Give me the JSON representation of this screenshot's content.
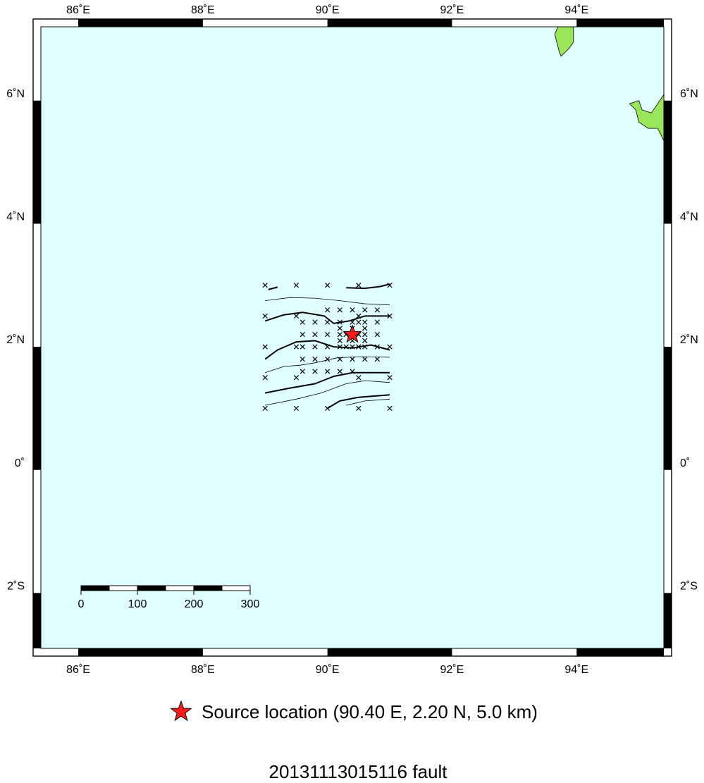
{
  "map": {
    "lon_range": [
      85.4,
      95.4
    ],
    "lat_range": [
      -2.9,
      7.2
    ],
    "colors": {
      "ocean": "#e0ffff",
      "land": "#9be55a",
      "frame": "#000000",
      "source": "#ff1a1a",
      "contour": "#000000"
    },
    "lon_ticks": [
      {
        "value": 86,
        "label": "86˚E"
      },
      {
        "value": 88,
        "label": "88˚E"
      },
      {
        "value": 90,
        "label": "90˚E"
      },
      {
        "value": 92,
        "label": "92˚E"
      },
      {
        "value": 94,
        "label": "94˚E"
      }
    ],
    "lat_ticks": [
      {
        "value": 6,
        "label": "6˚N"
      },
      {
        "value": 4,
        "label": "4˚N"
      },
      {
        "value": 2,
        "label": "2˚N"
      },
      {
        "value": 0,
        "label": "0˚"
      },
      {
        "value": -2,
        "label": "2˚S"
      }
    ],
    "scale_bar": {
      "unit": "km",
      "labels": [
        "0",
        "100",
        "200",
        "300"
      ]
    },
    "source": {
      "lon": 90.4,
      "lat": 2.2,
      "icon": "star-icon"
    },
    "grid_points": [
      [
        89.0,
        3.0
      ],
      [
        89.5,
        3.0
      ],
      [
        90.0,
        3.0
      ],
      [
        90.5,
        3.0
      ],
      [
        91.0,
        3.0
      ],
      [
        89.0,
        2.5
      ],
      [
        89.5,
        2.5
      ],
      [
        90.5,
        2.5
      ],
      [
        91.0,
        2.5
      ],
      [
        89.0,
        2.0
      ],
      [
        89.5,
        2.0
      ],
      [
        90.5,
        2.0
      ],
      [
        91.0,
        2.0
      ],
      [
        89.0,
        1.5
      ],
      [
        89.5,
        1.5
      ],
      [
        90.5,
        1.5
      ],
      [
        91.0,
        1.5
      ],
      [
        89.0,
        1.0
      ],
      [
        89.5,
        1.0
      ],
      [
        90.0,
        1.0
      ],
      [
        90.5,
        1.0
      ],
      [
        91.0,
        1.0
      ],
      [
        90.0,
        2.6
      ],
      [
        90.2,
        2.6
      ],
      [
        90.4,
        2.6
      ],
      [
        90.6,
        2.6
      ],
      [
        90.8,
        2.6
      ],
      [
        89.6,
        2.4
      ],
      [
        89.8,
        2.4
      ],
      [
        90.0,
        2.4
      ],
      [
        90.2,
        2.4
      ],
      [
        90.4,
        2.4
      ],
      [
        90.5,
        2.4
      ],
      [
        90.6,
        2.4
      ],
      [
        90.8,
        2.4
      ],
      [
        89.6,
        2.2
      ],
      [
        89.8,
        2.2
      ],
      [
        90.0,
        2.2
      ],
      [
        90.2,
        2.2
      ],
      [
        90.3,
        2.2
      ],
      [
        90.4,
        2.2
      ],
      [
        90.5,
        2.2
      ],
      [
        90.6,
        2.2
      ],
      [
        90.8,
        2.2
      ],
      [
        89.6,
        2.0
      ],
      [
        89.8,
        2.0
      ],
      [
        90.0,
        2.0
      ],
      [
        90.2,
        2.0
      ],
      [
        90.3,
        2.0
      ],
      [
        90.4,
        2.0
      ],
      [
        90.5,
        2.0
      ],
      [
        90.6,
        2.0
      ],
      [
        90.8,
        2.0
      ],
      [
        89.6,
        1.8
      ],
      [
        89.8,
        1.8
      ],
      [
        90.0,
        1.8
      ],
      [
        90.2,
        1.8
      ],
      [
        90.4,
        1.8
      ],
      [
        90.6,
        1.8
      ],
      [
        90.8,
        1.8
      ],
      [
        89.6,
        1.6
      ],
      [
        89.8,
        1.6
      ],
      [
        90.0,
        1.6
      ],
      [
        90.2,
        1.6
      ],
      [
        90.4,
        1.6
      ],
      [
        90.2,
        2.3
      ],
      [
        90.4,
        2.3
      ],
      [
        90.6,
        2.3
      ],
      [
        90.2,
        2.1
      ],
      [
        90.6,
        2.1
      ],
      [
        90.4,
        2.1
      ]
    ],
    "contours": [
      {
        "weight": "bold",
        "points": [
          [
            89.05,
            2.93
          ],
          [
            89.2,
            2.97
          ]
        ]
      },
      {
        "weight": "bold",
        "points": [
          [
            90.3,
            2.96
          ],
          [
            90.6,
            2.95
          ],
          [
            90.85,
            2.98
          ],
          [
            91.0,
            3.02
          ]
        ]
      },
      {
        "weight": "thin",
        "points": [
          [
            89.0,
            2.75
          ],
          [
            89.4,
            2.8
          ],
          [
            89.8,
            2.79
          ],
          [
            90.2,
            2.75
          ],
          [
            90.6,
            2.7
          ],
          [
            91.0,
            2.68
          ]
        ]
      },
      {
        "weight": "bold",
        "points": [
          [
            89.0,
            2.42
          ],
          [
            89.3,
            2.52
          ],
          [
            89.6,
            2.56
          ],
          [
            89.95,
            2.5
          ],
          [
            90.1,
            2.38
          ],
          [
            90.35,
            2.42
          ],
          [
            90.6,
            2.5
          ],
          [
            91.0,
            2.5
          ]
        ]
      },
      {
        "weight": "bold",
        "points": [
          [
            89.0,
            1.8
          ],
          [
            89.2,
            1.95
          ],
          [
            89.5,
            2.08
          ],
          [
            89.8,
            2.1
          ],
          [
            90.1,
            2.0
          ],
          [
            90.4,
            1.98
          ],
          [
            90.7,
            2.03
          ],
          [
            91.0,
            1.95
          ]
        ]
      },
      {
        "weight": "thin",
        "points": [
          [
            89.0,
            1.58
          ],
          [
            89.3,
            1.68
          ],
          [
            89.55,
            1.7
          ],
          [
            89.8,
            1.74
          ],
          [
            90.15,
            1.82
          ],
          [
            90.5,
            1.84
          ],
          [
            91.0,
            1.83
          ]
        ]
      },
      {
        "weight": "bold",
        "points": [
          [
            89.0,
            1.25
          ],
          [
            89.4,
            1.33
          ],
          [
            89.8,
            1.4
          ],
          [
            90.1,
            1.52
          ],
          [
            90.4,
            1.58
          ],
          [
            90.7,
            1.58
          ],
          [
            91.0,
            1.58
          ]
        ]
      },
      {
        "weight": "thin",
        "points": [
          [
            89.0,
            1.05
          ],
          [
            89.5,
            1.15
          ],
          [
            89.9,
            1.25
          ],
          [
            90.3,
            1.4
          ],
          [
            90.6,
            1.45
          ],
          [
            91.0,
            1.42
          ]
        ]
      },
      {
        "weight": "bold",
        "points": [
          [
            90.0,
            1.0
          ],
          [
            90.2,
            1.12
          ],
          [
            90.5,
            1.18
          ],
          [
            91.0,
            1.22
          ]
        ]
      },
      {
        "weight": "thin",
        "points": [
          [
            90.3,
            1.05
          ],
          [
            90.6,
            1.12
          ],
          [
            91.0,
            1.15
          ]
        ]
      }
    ],
    "land": [
      {
        "name": "island-north",
        "points": [
          [
            93.7,
            7.2
          ],
          [
            93.95,
            7.2
          ],
          [
            93.95,
            6.95
          ],
          [
            93.88,
            6.85
          ],
          [
            93.75,
            6.72
          ],
          [
            93.72,
            6.8
          ],
          [
            93.68,
            6.95
          ],
          [
            93.65,
            7.08
          ]
        ]
      },
      {
        "name": "landmass-east",
        "points": [
          [
            95.4,
            5.35
          ],
          [
            95.3,
            5.55
          ],
          [
            95.15,
            5.55
          ],
          [
            95.0,
            5.65
          ],
          [
            94.95,
            5.85
          ],
          [
            94.85,
            5.95
          ],
          [
            95.0,
            6.0
          ],
          [
            95.05,
            5.85
          ],
          [
            95.2,
            5.8
          ],
          [
            95.3,
            5.95
          ],
          [
            95.4,
            6.1
          ]
        ]
      }
    ]
  },
  "legend": {
    "icon": "star-icon",
    "text": "Source location (90.40 E, 2.20 N, 5.0 km)"
  },
  "title": "20131113015116 fault"
}
